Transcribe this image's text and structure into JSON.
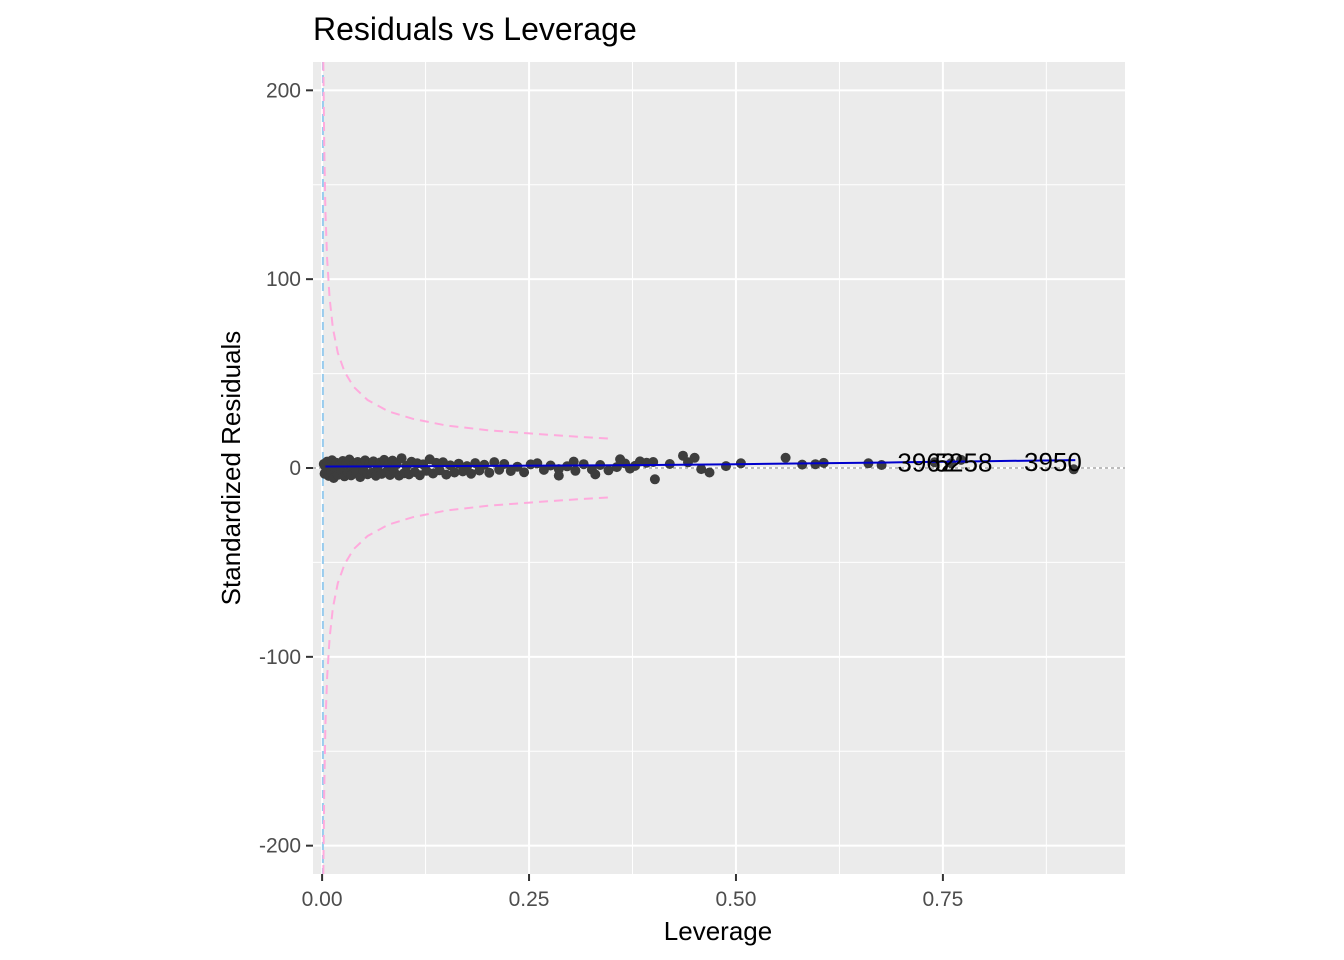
{
  "chart_data": {
    "type": "scatter",
    "title": "Residuals vs Leverage",
    "xlabel": "Leverage",
    "ylabel": "Standardized Residuals",
    "xlim": [
      -0.011,
      0.97
    ],
    "ylim": [
      -215,
      215
    ],
    "x_ticks": [
      0.0,
      0.25,
      0.5,
      0.75
    ],
    "x_tick_labels": [
      "0.00",
      "0.25",
      "0.50",
      "0.75"
    ],
    "y_ticks": [
      -200,
      -100,
      0,
      100,
      200
    ],
    "y_tick_labels": [
      "-200",
      "-100",
      "0",
      "100",
      "200"
    ],
    "grid": true,
    "background": "#ebebeb",
    "colors": {
      "points": "#3d3d3d",
      "smooth_line": "#0000cc",
      "cooks_contour": "#ffaadd",
      "leverage_reference": "#99ccee",
      "zero_reference": "#7a7a7a"
    },
    "series": [
      {
        "values": [
          {
            "x": 0.002,
            "y": 2.1
          },
          {
            "x": 0.003,
            "y": -3.0
          },
          {
            "x": 0.004,
            "y": 0.8
          },
          {
            "x": 0.005,
            "y": -1.6
          },
          {
            "x": 0.006,
            "y": 3.4
          },
          {
            "x": 0.008,
            "y": -4.2
          },
          {
            "x": 0.009,
            "y": 1.5
          },
          {
            "x": 0.011,
            "y": -2.2
          },
          {
            "x": 0.012,
            "y": 4.1
          },
          {
            "x": 0.014,
            "y": -5.3
          },
          {
            "x": 0.015,
            "y": 0.4
          },
          {
            "x": 0.017,
            "y": 2.8
          },
          {
            "x": 0.019,
            "y": -3.6
          },
          {
            "x": 0.021,
            "y": 1.2
          },
          {
            "x": 0.023,
            "y": -1.1
          },
          {
            "x": 0.025,
            "y": 3.7
          },
          {
            "x": 0.027,
            "y": -4.4
          },
          {
            "x": 0.029,
            "y": 2.2
          },
          {
            "x": 0.031,
            "y": -2.7
          },
          {
            "x": 0.033,
            "y": 4.5
          },
          {
            "x": 0.035,
            "y": -3.9
          },
          {
            "x": 0.037,
            "y": 0.9
          },
          {
            "x": 0.039,
            "y": 2.6
          },
          {
            "x": 0.041,
            "y": -2.0
          },
          {
            "x": 0.043,
            "y": 3.2
          },
          {
            "x": 0.046,
            "y": -4.8
          },
          {
            "x": 0.048,
            "y": 1.8
          },
          {
            "x": 0.05,
            "y": -1.4
          },
          {
            "x": 0.052,
            "y": 4.0
          },
          {
            "x": 0.055,
            "y": -3.3
          },
          {
            "x": 0.057,
            "y": 2.4
          },
          {
            "x": 0.06,
            "y": -2.6
          },
          {
            "x": 0.062,
            "y": 3.5
          },
          {
            "x": 0.065,
            "y": -4.1
          },
          {
            "x": 0.067,
            "y": 0.6
          },
          {
            "x": 0.07,
            "y": 2.9
          },
          {
            "x": 0.072,
            "y": -3.1
          },
          {
            "x": 0.075,
            "y": 4.3
          },
          {
            "x": 0.077,
            "y": -2.3
          },
          {
            "x": 0.08,
            "y": 1.6
          },
          {
            "x": 0.082,
            "y": -3.7
          },
          {
            "x": 0.085,
            "y": 3.9
          },
          {
            "x": 0.087,
            "y": -1.9
          },
          {
            "x": 0.09,
            "y": 2.0
          },
          {
            "x": 0.093,
            "y": -4.0
          },
          {
            "x": 0.096,
            "y": 5.2
          },
          {
            "x": 0.099,
            "y": -2.8
          },
          {
            "x": 0.102,
            "y": 1.1
          },
          {
            "x": 0.105,
            "y": -3.4
          },
          {
            "x": 0.108,
            "y": 3.3
          },
          {
            "x": 0.112,
            "y": -2.1
          },
          {
            "x": 0.115,
            "y": 2.5
          },
          {
            "x": 0.118,
            "y": -3.8
          },
          {
            "x": 0.122,
            "y": 1.9
          },
          {
            "x": 0.126,
            "y": -1.5
          },
          {
            "x": 0.13,
            "y": 4.6
          },
          {
            "x": 0.134,
            "y": -2.9
          },
          {
            "x": 0.138,
            "y": 2.7
          },
          {
            "x": 0.142,
            "y": -1.2
          },
          {
            "x": 0.146,
            "y": 3.0
          },
          {
            "x": 0.15,
            "y": -3.5
          },
          {
            "x": 0.155,
            "y": 1.4
          },
          {
            "x": 0.16,
            "y": -2.4
          },
          {
            "x": 0.165,
            "y": 2.3
          },
          {
            "x": 0.17,
            "y": -1.8
          },
          {
            "x": 0.175,
            "y": 1.0
          },
          {
            "x": 0.18,
            "y": -3.0
          },
          {
            "x": 0.185,
            "y": 2.6
          },
          {
            "x": 0.19,
            "y": -1.3
          },
          {
            "x": 0.196,
            "y": 1.7
          },
          {
            "x": 0.202,
            "y": -2.5
          },
          {
            "x": 0.208,
            "y": 3.1
          },
          {
            "x": 0.214,
            "y": -0.9
          },
          {
            "x": 0.22,
            "y": 2.1
          },
          {
            "x": 0.228,
            "y": -1.6
          },
          {
            "x": 0.236,
            "y": 0.7
          },
          {
            "x": 0.244,
            "y": -2.2
          },
          {
            "x": 0.252,
            "y": 1.9
          },
          {
            "x": 0.26,
            "y": 2.5
          },
          {
            "x": 0.268,
            "y": -1.0
          },
          {
            "x": 0.276,
            "y": 1.3
          },
          {
            "x": 0.286,
            "y": -0.6
          },
          {
            "x": 0.296,
            "y": 0.9
          },
          {
            "x": 0.306,
            "y": -1.5
          },
          {
            "x": 0.316,
            "y": 2.0
          },
          {
            "x": 0.326,
            "y": -0.8
          },
          {
            "x": 0.336,
            "y": 1.6
          },
          {
            "x": 0.346,
            "y": -1.2
          },
          {
            "x": 0.356,
            "y": 0.5
          },
          {
            "x": 0.366,
            "y": 2.4
          },
          {
            "x": 0.372,
            "y": -0.3
          },
          {
            "x": 0.378,
            "y": 1.1
          },
          {
            "x": 0.384,
            "y": 3.5
          },
          {
            "x": 0.392,
            "y": 2.8
          },
          {
            "x": 0.4,
            "y": 3.2
          },
          {
            "x": 0.42,
            "y": 2.1
          },
          {
            "x": 0.436,
            "y": 6.5
          },
          {
            "x": 0.442,
            "y": 3.0
          },
          {
            "x": 0.45,
            "y": 5.4
          },
          {
            "x": 0.458,
            "y": -0.6
          },
          {
            "x": 0.468,
            "y": -2.4
          },
          {
            "x": 0.488,
            "y": 1.0
          },
          {
            "x": 0.506,
            "y": 2.5
          },
          {
            "x": 0.56,
            "y": 5.4
          },
          {
            "x": 0.58,
            "y": 1.8
          },
          {
            "x": 0.596,
            "y": 2.0
          },
          {
            "x": 0.606,
            "y": 2.7
          },
          {
            "x": 0.66,
            "y": 2.5
          },
          {
            "x": 0.676,
            "y": 1.6
          },
          {
            "x": 0.74,
            "y": 3.0
          },
          {
            "x": 0.76,
            "y": 2.6
          },
          {
            "x": 0.772,
            "y": 4.3
          },
          {
            "x": 0.908,
            "y": -0.7
          },
          {
            "x": 0.402,
            "y": -6.0
          },
          {
            "x": 0.36,
            "y": 4.6
          },
          {
            "x": 0.33,
            "y": -3.4
          },
          {
            "x": 0.304,
            "y": 3.4
          },
          {
            "x": 0.286,
            "y": -4.0
          }
        ]
      }
    ],
    "smooth_line": [
      {
        "x": 0.004,
        "y": 0.8
      },
      {
        "x": 0.1,
        "y": 0.9
      },
      {
        "x": 0.2,
        "y": 1.1
      },
      {
        "x": 0.3,
        "y": 1.3
      },
      {
        "x": 0.4,
        "y": 1.6
      },
      {
        "x": 0.5,
        "y": 2.0
      },
      {
        "x": 0.6,
        "y": 2.5
      },
      {
        "x": 0.7,
        "y": 3.0
      },
      {
        "x": 0.8,
        "y": 3.6
      },
      {
        "x": 0.91,
        "y": 4.2
      }
    ],
    "cooks_contour_upper": [
      {
        "x": 0.0015,
        "y": 215
      },
      {
        "x": 0.0025,
        "y": 172
      },
      {
        "x": 0.004,
        "y": 136
      },
      {
        "x": 0.006,
        "y": 111
      },
      {
        "x": 0.009,
        "y": 90
      },
      {
        "x": 0.013,
        "y": 74
      },
      {
        "x": 0.019,
        "y": 61
      },
      {
        "x": 0.027,
        "y": 51
      },
      {
        "x": 0.038,
        "y": 43
      },
      {
        "x": 0.055,
        "y": 36
      },
      {
        "x": 0.08,
        "y": 30
      },
      {
        "x": 0.11,
        "y": 26
      },
      {
        "x": 0.15,
        "y": 22.5
      },
      {
        "x": 0.2,
        "y": 20
      },
      {
        "x": 0.26,
        "y": 18
      },
      {
        "x": 0.31,
        "y": 16.5
      },
      {
        "x": 0.35,
        "y": 15.5
      }
    ],
    "cooks_contour_lower": [
      {
        "x": 0.0015,
        "y": -215
      },
      {
        "x": 0.0025,
        "y": -172
      },
      {
        "x": 0.004,
        "y": -136
      },
      {
        "x": 0.006,
        "y": -111
      },
      {
        "x": 0.009,
        "y": -90
      },
      {
        "x": 0.013,
        "y": -74
      },
      {
        "x": 0.019,
        "y": -61
      },
      {
        "x": 0.027,
        "y": -51
      },
      {
        "x": 0.038,
        "y": -43
      },
      {
        "x": 0.055,
        "y": -36
      },
      {
        "x": 0.08,
        "y": -30
      },
      {
        "x": 0.11,
        "y": -26
      },
      {
        "x": 0.15,
        "y": -22.5
      },
      {
        "x": 0.2,
        "y": -20
      },
      {
        "x": 0.26,
        "y": -18
      },
      {
        "x": 0.31,
        "y": -16.5
      },
      {
        "x": 0.35,
        "y": -15.5
      }
    ],
    "leverage_reference_x": 0.001,
    "annotations": [
      {
        "text": "3962",
        "x": 0.695,
        "y": 2.8
      },
      {
        "text": "3950",
        "x": 0.848,
        "y": 3.2
      },
      {
        "text": "5258",
        "x": 0.74,
        "y": 3.0
      }
    ]
  }
}
